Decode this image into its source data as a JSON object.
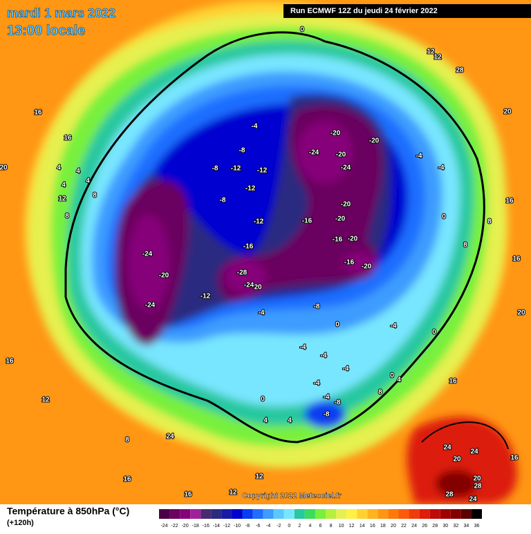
{
  "header": {
    "date": "mardi 1 mars 2022",
    "time": "13:00 locale",
    "run": "Run ECMWF 12Z du jeudi 24 février 2022"
  },
  "copyright": "Copyright 2022 Meteociel.fr",
  "legend": {
    "title": "Température à 850hPa (°C)",
    "lead": "(+120h)",
    "scale": [
      {
        "value": -24,
        "color": "#4b0046"
      },
      {
        "value": -22,
        "color": "#6b005f"
      },
      {
        "value": -20,
        "color": "#86007a"
      },
      {
        "value": -18,
        "color": "#a0209a"
      },
      {
        "value": -16,
        "color": "#4a2a6e"
      },
      {
        "value": -14,
        "color": "#2b2b80"
      },
      {
        "value": -12,
        "color": "#1a1aa8"
      },
      {
        "value": -10,
        "color": "#0000d0"
      },
      {
        "value": -8,
        "color": "#0a3cf0"
      },
      {
        "value": -6,
        "color": "#1e6eff"
      },
      {
        "value": -4,
        "color": "#3c9cff"
      },
      {
        "value": -2,
        "color": "#5ac8ff"
      },
      {
        "value": 0,
        "color": "#78e6ff"
      },
      {
        "value": 2,
        "color": "#28c8a0"
      },
      {
        "value": 4,
        "color": "#3cdc5a"
      },
      {
        "value": 6,
        "color": "#78f03c"
      },
      {
        "value": 8,
        "color": "#b4f03c"
      },
      {
        "value": 10,
        "color": "#e6f050"
      },
      {
        "value": 12,
        "color": "#fff046"
      },
      {
        "value": 14,
        "color": "#ffd232"
      },
      {
        "value": 16,
        "color": "#ffb41e"
      },
      {
        "value": 18,
        "color": "#ff9614"
      },
      {
        "value": 20,
        "color": "#ff780a"
      },
      {
        "value": 22,
        "color": "#ff5a0a"
      },
      {
        "value": 24,
        "color": "#f03c0a"
      },
      {
        "value": 26,
        "color": "#dc1e0a"
      },
      {
        "value": 28,
        "color": "#be0a0a"
      },
      {
        "value": 30,
        "color": "#a00000"
      },
      {
        "value": 32,
        "color": "#820000"
      },
      {
        "value": 34,
        "color": "#5a0000"
      },
      {
        "value": 36,
        "color": "#000000"
      }
    ]
  },
  "contour_labels": [
    0,
    12,
    12,
    28,
    20,
    16,
    16,
    20,
    4,
    4,
    4,
    4,
    8,
    12,
    8,
    -4,
    -8,
    -8,
    -12,
    -12,
    -12,
    -8,
    -12,
    -20,
    -20,
    -24,
    -20,
    -24,
    -4,
    -4,
    16,
    -20,
    0,
    8,
    -16,
    -20,
    -16,
    -16,
    -20,
    8,
    -24,
    16,
    -16,
    -20,
    -28,
    -20,
    -24,
    20,
    -12,
    -24,
    -8,
    -4,
    20,
    0,
    -4,
    0,
    -4,
    -4,
    16,
    -4,
    0,
    4,
    -4,
    16,
    8,
    12,
    0,
    -8,
    -4,
    -8,
    4,
    4,
    8,
    24,
    24,
    24,
    20,
    16,
    16,
    12,
    20,
    28,
    28,
    16,
    24,
    12
  ]
}
